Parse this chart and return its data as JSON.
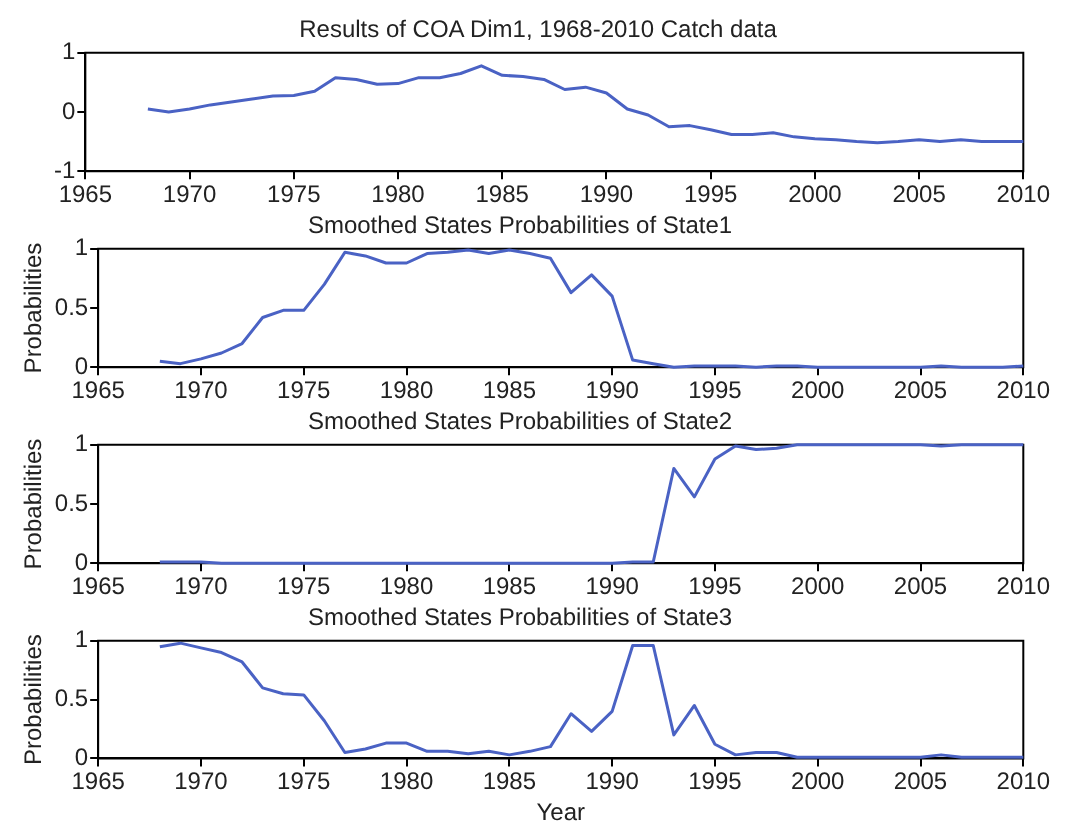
{
  "chart_data": [
    {
      "type": "line",
      "title": "Results of COA Dim1, 1968-2010 Catch data",
      "x": [
        1968,
        1969,
        1970,
        1971,
        1972,
        1973,
        1974,
        1975,
        1976,
        1977,
        1978,
        1979,
        1980,
        1981,
        1982,
        1983,
        1984,
        1985,
        1986,
        1987,
        1988,
        1989,
        1990,
        1991,
        1992,
        1993,
        1994,
        1995,
        1996,
        1997,
        1998,
        1999,
        2000,
        2001,
        2002,
        2003,
        2004,
        2005,
        2006,
        2007,
        2008,
        2009,
        2010
      ],
      "xlim": [
        1965,
        2010
      ],
      "xticks": [
        1965,
        1970,
        1975,
        1980,
        1985,
        1990,
        1995,
        2000,
        2005,
        2010
      ],
      "ylim": [
        -1,
        1
      ],
      "yticks": [
        -1,
        0,
        1
      ],
      "series": [
        {
          "color": "#4a62c4",
          "values": [
            0.05,
            0.0,
            0.05,
            0.12,
            0.17,
            0.22,
            0.27,
            0.28,
            0.35,
            0.58,
            0.55,
            0.47,
            0.48,
            0.58,
            0.58,
            0.65,
            0.78,
            0.62,
            0.6,
            0.55,
            0.38,
            0.42,
            0.32,
            0.05,
            -0.05,
            -0.25,
            -0.23,
            -0.3,
            -0.38,
            -0.38,
            -0.35,
            -0.42,
            -0.45,
            -0.47,
            -0.5,
            -0.52,
            -0.5,
            -0.47,
            -0.5,
            -0.47,
            -0.5,
            -0.5,
            -0.5
          ]
        }
      ]
    },
    {
      "type": "line",
      "title": "Smoothed States Probabilities of State1",
      "ylabel": "Probabilities",
      "x": [
        1968,
        1969,
        1970,
        1971,
        1972,
        1973,
        1974,
        1975,
        1976,
        1977,
        1978,
        1979,
        1980,
        1981,
        1982,
        1983,
        1984,
        1985,
        1986,
        1987,
        1988,
        1989,
        1990,
        1991,
        1992,
        1993,
        1994,
        1995,
        1996,
        1997,
        1998,
        1999,
        2000,
        2001,
        2002,
        2003,
        2004,
        2005,
        2006,
        2007,
        2008,
        2009,
        2010
      ],
      "xlim": [
        1965,
        2010
      ],
      "xticks": [
        1965,
        1970,
        1975,
        1980,
        1985,
        1990,
        1995,
        2000,
        2005,
        2010
      ],
      "ylim": [
        0,
        1
      ],
      "yticks": [
        0,
        0.5,
        1
      ],
      "series": [
        {
          "color": "#4a62c4",
          "values": [
            0.05,
            0.03,
            0.07,
            0.12,
            0.2,
            0.42,
            0.48,
            0.48,
            0.7,
            0.97,
            0.94,
            0.88,
            0.88,
            0.96,
            0.97,
            0.99,
            0.96,
            0.99,
            0.96,
            0.92,
            0.63,
            0.78,
            0.6,
            0.06,
            0.03,
            0,
            0.01,
            0.01,
            0.01,
            0,
            0.01,
            0.01,
            0,
            0,
            0,
            0,
            0,
            0,
            0.01,
            0,
            0,
            0,
            0.01
          ]
        }
      ]
    },
    {
      "type": "line",
      "title": "Smoothed States Probabilities of State2",
      "ylabel": "Probabilities",
      "x": [
        1968,
        1969,
        1970,
        1971,
        1972,
        1973,
        1974,
        1975,
        1976,
        1977,
        1978,
        1979,
        1980,
        1981,
        1982,
        1983,
        1984,
        1985,
        1986,
        1987,
        1988,
        1989,
        1990,
        1991,
        1992,
        1993,
        1994,
        1995,
        1996,
        1997,
        1998,
        1999,
        2000,
        2001,
        2002,
        2003,
        2004,
        2005,
        2006,
        2007,
        2008,
        2009,
        2010
      ],
      "xlim": [
        1965,
        2010
      ],
      "xticks": [
        1965,
        1970,
        1975,
        1980,
        1985,
        1990,
        1995,
        2000,
        2005,
        2010
      ],
      "ylim": [
        0,
        1
      ],
      "yticks": [
        0,
        0.5,
        1
      ],
      "series": [
        {
          "color": "#4a62c4",
          "values": [
            0.01,
            0.01,
            0.01,
            0,
            0,
            0,
            0,
            0,
            0,
            0,
            0,
            0,
            0,
            0,
            0,
            0,
            0,
            0,
            0,
            0,
            0,
            0,
            0,
            0.01,
            0.01,
            0.8,
            0.56,
            0.88,
            0.99,
            0.96,
            0.97,
            1,
            1,
            1,
            1,
            1,
            1,
            1,
            0.99,
            1,
            1,
            1,
            1
          ]
        }
      ]
    },
    {
      "type": "line",
      "title": "Smoothed States Probabilities of State3",
      "ylabel": "Probabilities",
      "xlabel": "Year",
      "x": [
        1968,
        1969,
        1970,
        1971,
        1972,
        1973,
        1974,
        1975,
        1976,
        1977,
        1978,
        1979,
        1980,
        1981,
        1982,
        1983,
        1984,
        1985,
        1986,
        1987,
        1988,
        1989,
        1990,
        1991,
        1992,
        1993,
        1994,
        1995,
        1996,
        1997,
        1998,
        1999,
        2000,
        2001,
        2002,
        2003,
        2004,
        2005,
        2006,
        2007,
        2008,
        2009,
        2010
      ],
      "xlim": [
        1965,
        2010
      ],
      "xticks": [
        1965,
        1970,
        1975,
        1980,
        1985,
        1990,
        1995,
        2000,
        2005,
        2010
      ],
      "ylim": [
        0,
        1
      ],
      "yticks": [
        0,
        0.5,
        1
      ],
      "series": [
        {
          "color": "#4a62c4",
          "values": [
            0.95,
            0.98,
            0.94,
            0.9,
            0.82,
            0.6,
            0.55,
            0.54,
            0.32,
            0.05,
            0.08,
            0.13,
            0.13,
            0.06,
            0.06,
            0.04,
            0.06,
            0.03,
            0.06,
            0.1,
            0.38,
            0.23,
            0.4,
            0.96,
            0.96,
            0.2,
            0.45,
            0.12,
            0.03,
            0.05,
            0.05,
            0.01,
            0.01,
            0.01,
            0.01,
            0.01,
            0.01,
            0.01,
            0.03,
            0.01,
            0.01,
            0.01,
            0.01
          ]
        }
      ]
    }
  ]
}
